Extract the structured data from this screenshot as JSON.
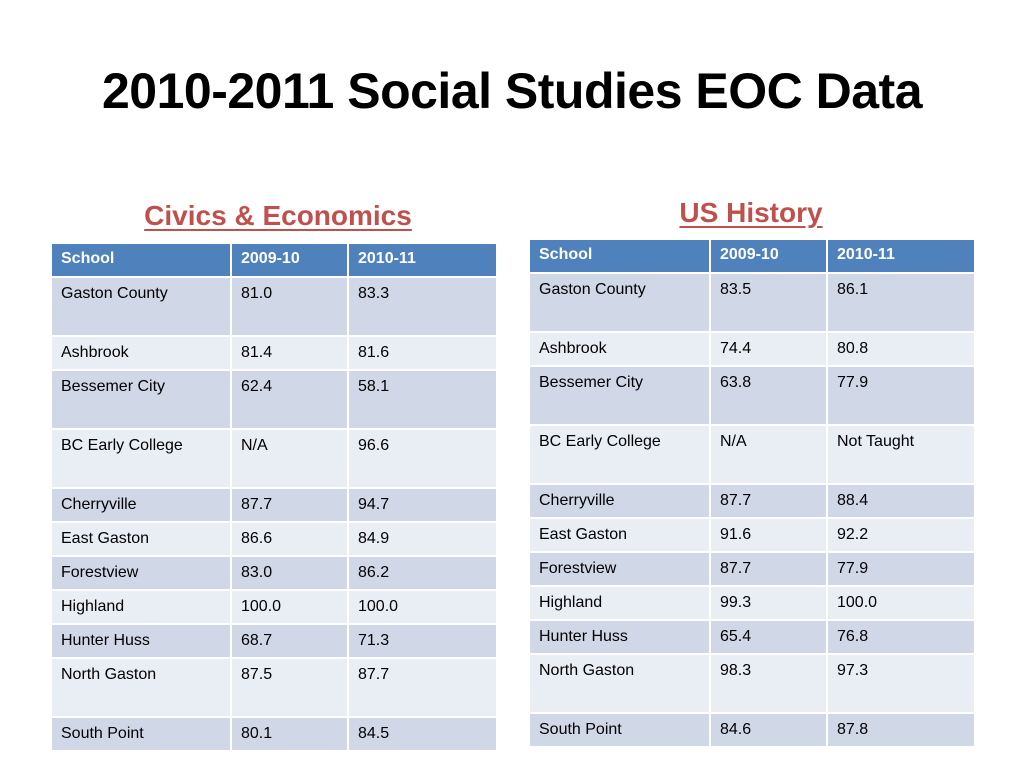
{
  "title": "2010-2011 Social Studies EOC Data",
  "colors": {
    "header": "#4f81bd",
    "row_odd": "#d0d8e8",
    "row_even": "#e9edf4",
    "subtitle": "#c0504d"
  },
  "civics": {
    "subtitle": "Civics & Economics",
    "headers": [
      "School",
      "2009-10",
      "2010-11"
    ],
    "rows": [
      [
        "Gaston County",
        "81.0",
        "83.3"
      ],
      [
        "Ashbrook",
        "81.4",
        "81.6"
      ],
      [
        "Bessemer City",
        "62.4",
        "58.1"
      ],
      [
        "BC Early College",
        "N/A",
        "96.6"
      ],
      [
        "Cherryville",
        "87.7",
        "94.7"
      ],
      [
        "East Gaston",
        "86.6",
        "84.9"
      ],
      [
        "Forestview",
        "83.0",
        "86.2"
      ],
      [
        "Highland",
        "100.0",
        "100.0"
      ],
      [
        "Hunter Huss",
        "68.7",
        "71.3"
      ],
      [
        "North Gaston",
        "87.5",
        "87.7"
      ],
      [
        "South Point",
        "80.1",
        "84.5"
      ]
    ]
  },
  "ushistory": {
    "subtitle": "US History",
    "headers": [
      "School",
      "2009-10",
      "2010-11"
    ],
    "rows": [
      [
        "Gaston County",
        "83.5",
        "86.1"
      ],
      [
        "Ashbrook",
        "74.4",
        "80.8"
      ],
      [
        "Bessemer City",
        "63.8",
        "77.9"
      ],
      [
        "BC Early College",
        "N/A",
        "Not Taught"
      ],
      [
        "Cherryville",
        "87.7",
        "88.4"
      ],
      [
        "East Gaston",
        "91.6",
        "92.2"
      ],
      [
        "Forestview",
        "87.7",
        "77.9"
      ],
      [
        "Highland",
        "99.3",
        "100.0"
      ],
      [
        "Hunter Huss",
        "65.4",
        "76.8"
      ],
      [
        "North Gaston",
        "98.3",
        "97.3"
      ],
      [
        "South Point",
        "84.6",
        "87.8"
      ]
    ]
  }
}
